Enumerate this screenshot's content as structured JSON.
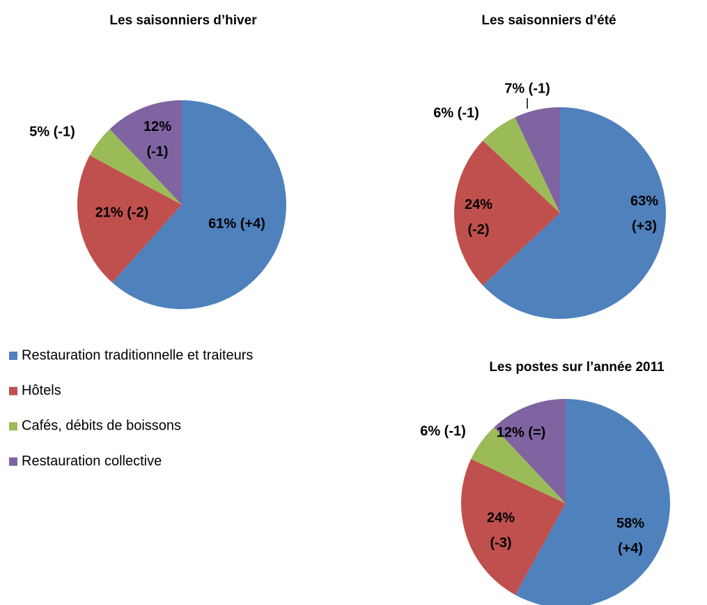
{
  "chart_data": [
    {
      "type": "pie",
      "title": "Les saisonniers d’hiver",
      "values": [
        61,
        21,
        5,
        12
      ],
      "value_labels": [
        "61% (+4)",
        "21% (-2)",
        "5% (-1)",
        "12% (-1)"
      ]
    },
    {
      "type": "pie",
      "title": "Les saisonniers d’été",
      "values": [
        63,
        24,
        6,
        7
      ],
      "value_labels": [
        "63% (+3)",
        "24% (-2)",
        "6% (-1)",
        "7% (-1)"
      ]
    },
    {
      "type": "pie",
      "title": "Les postes sur l’année 2011",
      "values": [
        58,
        24,
        6,
        12
      ],
      "value_labels": [
        "58% (+4)",
        "24% (-3)",
        "6% (-1)",
        "12% (=)"
      ]
    }
  ],
  "legend": {
    "categories": [
      "Restauration traditionnelle et traiteurs",
      "Hôtels",
      "Cafés, débits de boissons",
      "Restauration collective"
    ],
    "colors": [
      "#4f81bd",
      "#c0504d",
      "#9bbb59",
      "#8064a2"
    ]
  }
}
